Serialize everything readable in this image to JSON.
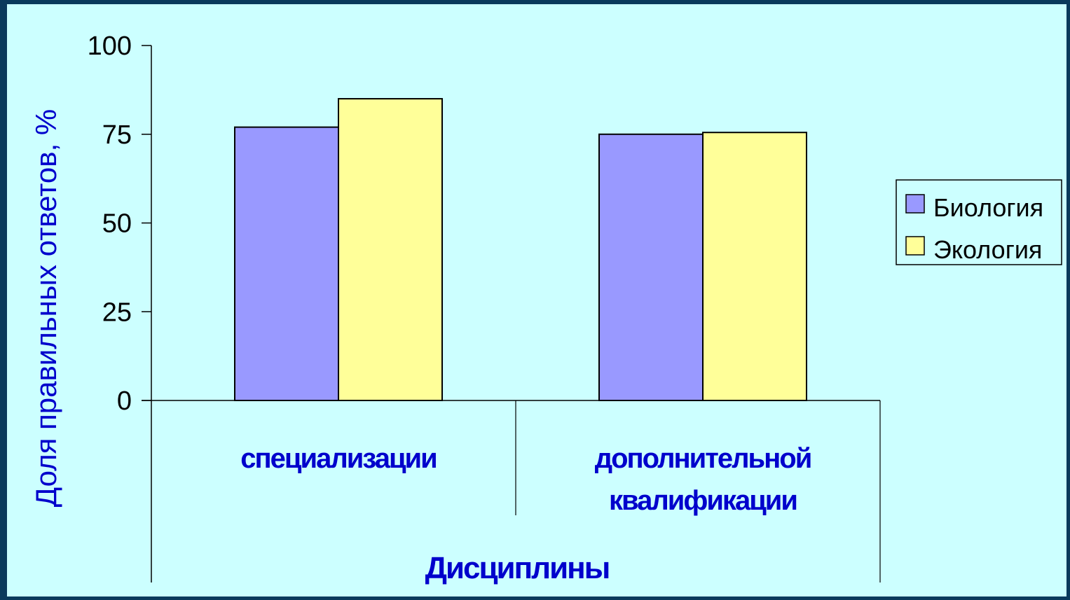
{
  "chart_data": {
    "type": "bar",
    "categories": [
      "специализации",
      "дополнительной квалификации"
    ],
    "category_lines": [
      [
        "специализации"
      ],
      [
        "дополнительной",
        "квалификации"
      ]
    ],
    "series": [
      {
        "name": "Биология",
        "values": [
          77,
          75
        ],
        "color": "#9999ff"
      },
      {
        "name": "Экология",
        "values": [
          85,
          75.5
        ],
        "color": "#ffff99"
      }
    ],
    "ylabel": "Доля правильных ответов, %",
    "xlabel": "Дисциплины",
    "ylim": [
      0,
      100
    ],
    "yticks": [
      0,
      25,
      50,
      75,
      100
    ],
    "legend_position": "right",
    "grid": false,
    "background": "#ccffff",
    "page_background": "#0a3a5c"
  }
}
